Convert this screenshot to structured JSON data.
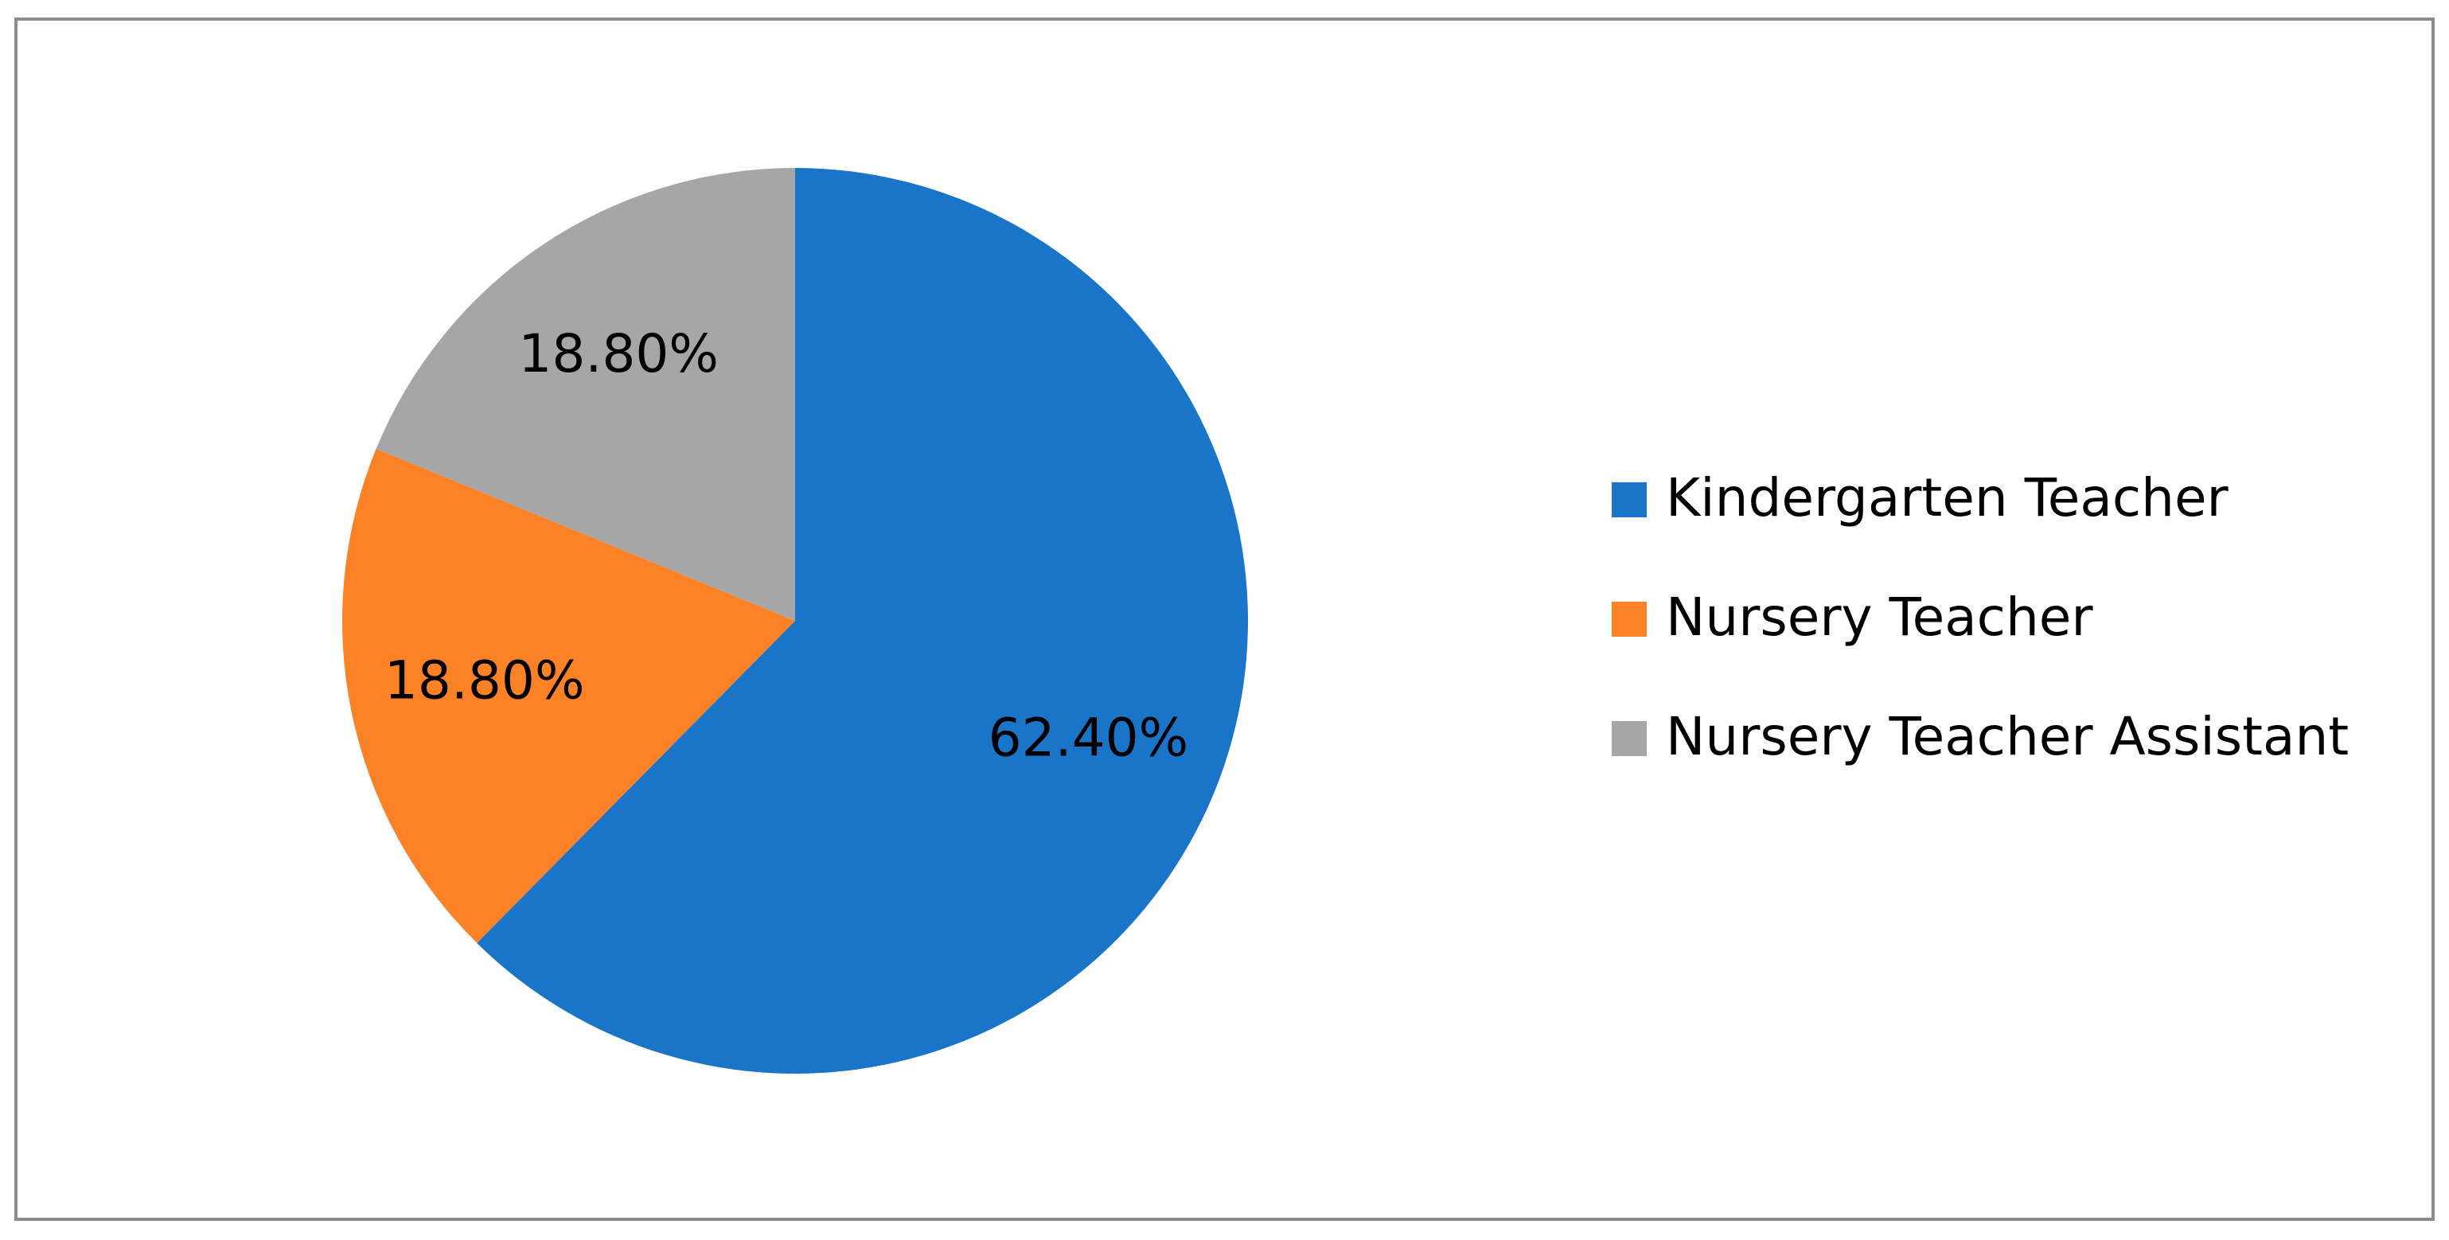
{
  "chart_data": {
    "type": "pie",
    "categories": [
      "Kindergarten Teacher",
      "Nursery Teacher",
      "Nursery Teacher Assistant"
    ],
    "values": [
      62.4,
      18.8,
      18.8
    ],
    "value_labels": [
      "62.40%",
      "18.80%",
      "18.80%"
    ],
    "colors": [
      "#1a74c8",
      "#fd8127",
      "#a6a6a6"
    ],
    "legend": "right"
  }
}
